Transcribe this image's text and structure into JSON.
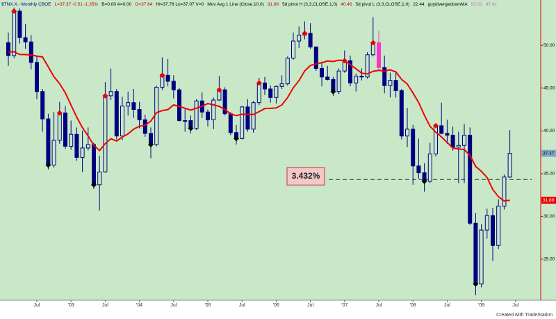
{
  "chart_data": {
    "type": "candlestick",
    "header": [
      {
        "text": "$TNX.X - Monthly  CBOE",
        "color": "#000080"
      },
      {
        "text": "L=37.37  -0.51  -1.35%",
        "color": "#cc0000"
      },
      {
        "text": "B=0.00  A=0.00",
        "color": "#000000"
      },
      {
        "text": "O=37.64",
        "color": "#cc0000"
      },
      {
        "text": "Hi=37.78  Lo=37.07  V=0",
        "color": "#000000"
      },
      {
        "text": "Mov Avg 1 Line (Close,10,0)",
        "color": "#000000"
      },
      {
        "text": "31.89",
        "color": "#cc0000"
      },
      {
        "text": "5d pivot H (3,3,CLOSE,1,0)",
        "color": "#000000"
      },
      {
        "text": "40.46",
        "color": "#cc0000"
      },
      {
        "text": "5d pivot L (3,3,CLOSE,1,0)",
        "color": "#000000"
      },
      {
        "text": "22.44",
        "color": "#000000"
      },
      {
        "text": "guydivergedownMA",
        "color": "#000000"
      },
      {
        "text": "52.01",
        "color": "#cc66cc"
      },
      {
        "text": "47.41",
        "color": "#cc66cc"
      }
    ],
    "footer": "Created with TradeStation",
    "categories": [
      null,
      null,
      null,
      null,
      null,
      "Jul",
      null,
      null,
      null,
      null,
      null,
      "'03",
      null,
      null,
      null,
      null,
      null,
      "Jul",
      null,
      null,
      null,
      null,
      null,
      "'04",
      null,
      null,
      null,
      null,
      null,
      "Jul",
      null,
      null,
      null,
      null,
      null,
      "'05",
      null,
      null,
      null,
      null,
      null,
      "Jul",
      null,
      null,
      null,
      null,
      null,
      "'06",
      null,
      null,
      null,
      null,
      null,
      "Jul",
      null,
      null,
      null,
      null,
      null,
      "'07",
      null,
      null,
      null,
      null,
      null,
      "Jul",
      null,
      null,
      null,
      null,
      null,
      "'08",
      null,
      null,
      null,
      null,
      null,
      "Jul",
      null,
      null,
      null,
      null,
      null,
      "'09",
      null,
      null,
      null,
      null,
      null,
      "Jul"
    ],
    "open": [
      50.3,
      48.8,
      54.0,
      50.9,
      50.4,
      48.0,
      44.6,
      41.4,
      36.0,
      38.9,
      42.1,
      38.2,
      39.6,
      36.9,
      38.0,
      38.4,
      33.7,
      35.2,
      44.1,
      44.6,
      39.4,
      42.9,
      43.3,
      42.5,
      41.3,
      39.7,
      38.4,
      45.1,
      46.5,
      45.8,
      44.8,
      41.2,
      41.2,
      40.3,
      43.5,
      42.2,
      41.3,
      43.6,
      44.8,
      42.0,
      39.8,
      39.1,
      42.8,
      40.2,
      43.3,
      45.6,
      44.9,
      43.9,
      45.2,
      45.5,
      48.5,
      50.5,
      51.2,
      51.4,
      49.8,
      47.3,
      46.3,
      46.0,
      44.6,
      47.0,
      48.2,
      45.6,
      46.4,
      46.3,
      48.9,
      50.3,
      47.4,
      45.3,
      45.9,
      44.7,
      39.4,
      40.2,
      35.9,
      35.1,
      34.1,
      37.3,
      40.6,
      39.7,
      39.5,
      38.1,
      38.3,
      39.5,
      29.2,
      22.1,
      28.4,
      30.1,
      26.6,
      31.2,
      34.6,
      null
    ],
    "high": [
      51.5,
      54.4,
      54.3,
      52.5,
      51.2,
      48.8,
      44.9,
      42.0,
      42.2,
      43.4,
      42.9,
      41.2,
      40.4,
      40.0,
      40.4,
      38.6,
      37.1,
      45.7,
      47.3,
      44.9,
      44.0,
      44.6,
      44.9,
      43.4,
      41.9,
      40.4,
      45.3,
      48.6,
      48.4,
      46.5,
      45.0,
      42.6,
      41.8,
      43.7,
      44.5,
      42.5,
      43.9,
      46.4,
      45.1,
      42.2,
      40.7,
      42.9,
      43.7,
      43.5,
      46.2,
      46.3,
      45.3,
      45.3,
      46.5,
      48.7,
      51.5,
      52.2,
      52.8,
      52.6,
      49.9,
      48.1,
      47.6,
      46.3,
      47.3,
      49.4,
      48.8,
      46.7,
      47.3,
      49.2,
      53.3,
      51.7,
      48.8,
      46.8,
      46.8,
      44.9,
      42.7,
      40.7,
      39.1,
      36.2,
      38.6,
      40.8,
      43.3,
      41.3,
      40.5,
      39.9,
      40.8,
      40.4,
      30.4,
      29.1,
      30.9,
      31.0,
      32.0,
      34.9,
      40.1,
      null
    ],
    "low": [
      47.6,
      48.5,
      50.2,
      49.6,
      47.2,
      43.7,
      39.9,
      35.5,
      35.7,
      38.5,
      37.9,
      37.8,
      36.5,
      35.2,
      37.7,
      33.2,
      30.7,
      35.1,
      43.6,
      39.0,
      38.9,
      41.8,
      41.5,
      40.3,
      39.3,
      36.8,
      38.2,
      44.8,
      45.2,
      43.8,
      41.1,
      39.9,
      39.7,
      40.1,
      41.5,
      40.5,
      40.2,
      43.5,
      41.8,
      39.5,
      38.4,
      39.0,
      39.9,
      39.8,
      43.0,
      44.2,
      43.3,
      43.2,
      44.9,
      45.3,
      48.3,
      49.7,
      50.7,
      49.6,
      47.0,
      45.2,
      45.9,
      44.1,
      44.3,
      46.8,
      45.2,
      44.6,
      45.9,
      46.1,
      48.7,
      47.0,
      44.4,
      43.9,
      43.9,
      39.0,
      38.1,
      33.7,
      34.4,
      32.9,
      33.9,
      37.0,
      39.6,
      38.5,
      37.7,
      33.9,
      33.9,
      29.0,
      20.8,
      21.7,
      27.4,
      24.8,
      26.2,
      30.8,
      34.5,
      null
    ],
    "close": [
      48.8,
      54.0,
      50.9,
      50.4,
      48.0,
      44.6,
      41.4,
      36.0,
      38.9,
      42.1,
      38.2,
      39.6,
      36.9,
      38.0,
      38.4,
      33.7,
      35.2,
      44.1,
      44.6,
      39.4,
      42.9,
      43.3,
      42.5,
      41.3,
      39.7,
      38.4,
      45.1,
      46.5,
      45.8,
      44.8,
      41.2,
      41.2,
      40.3,
      43.5,
      42.2,
      41.3,
      43.6,
      44.8,
      42.0,
      39.8,
      39.1,
      42.8,
      40.2,
      43.3,
      45.6,
      44.9,
      43.9,
      45.2,
      45.5,
      48.5,
      50.5,
      51.2,
      51.4,
      49.8,
      47.3,
      46.3,
      46.0,
      44.6,
      47.0,
      48.2,
      45.6,
      46.4,
      46.3,
      48.9,
      50.3,
      47.4,
      45.3,
      45.9,
      44.7,
      39.4,
      40.2,
      35.9,
      35.1,
      34.1,
      37.3,
      40.6,
      39.7,
      39.5,
      38.1,
      38.3,
      39.5,
      29.2,
      22.1,
      28.4,
      30.1,
      26.6,
      31.2,
      34.6,
      37.37,
      null
    ],
    "ma": [
      49.25,
      49.25,
      48.93,
      48.92,
      48.88,
      48.74,
      48.64,
      47.49,
      46.33,
      45.51,
      44.45,
      43.01,
      41.61,
      40.37,
      39.41,
      38.32,
      37.7,
      38.51,
      39.08,
      38.81,
      39.28,
      39.65,
      40.21,
      40.54,
      40.67,
      41.14,
      42.13,
      42.37,
      42.49,
      43.03,
      42.86,
      42.65,
      42.43,
      42.65,
      42.9,
      43.19,
      43.04,
      42.87,
      42.49,
      41.99,
      41.78,
      41.94,
      41.93,
      41.91,
      42.25,
      42.61,
      42.64,
      42.68,
      43.03,
      43.9,
      45.04,
      45.88,
      47.0,
      47.65,
      47.82,
      47.96,
      48.17,
      48.11,
      48.26,
      48.23,
      47.74,
      47.26,
      46.75,
      46.66,
      46.96,
      47.07,
      47.0,
      47.13,
      46.9,
      46.02,
      45.48,
      44.43,
      43.31,
      41.83,
      40.53,
      39.85,
      39.29,
      38.65,
      37.99,
      37.88,
      37.81,
      37.14,
      35.84,
      35.27,
      34.55,
      33.15,
      32.3,
      31.81,
      31.89,
      null
    ],
    "pivot_high": [
      null,
      54.0,
      null,
      null,
      null,
      null,
      null,
      null,
      null,
      42.1,
      null,
      null,
      null,
      null,
      null,
      null,
      null,
      44.1,
      null,
      null,
      null,
      null,
      null,
      null,
      null,
      null,
      null,
      46.5,
      null,
      null,
      null,
      null,
      null,
      null,
      null,
      null,
      null,
      44.8,
      null,
      null,
      null,
      null,
      null,
      null,
      45.6,
      null,
      null,
      null,
      null,
      null,
      null,
      null,
      51.4,
      null,
      null,
      null,
      null,
      null,
      null,
      48.2,
      null,
      null,
      null,
      null,
      50.3,
      null,
      null,
      null,
      null,
      null,
      null,
      null,
      null,
      null,
      null,
      40.6,
      null,
      null,
      null,
      null,
      null,
      null,
      null,
      null,
      null,
      null,
      null,
      null,
      null,
      null
    ],
    "pivot_low": [
      null,
      null,
      null,
      null,
      null,
      null,
      null,
      36.0,
      null,
      null,
      null,
      null,
      null,
      null,
      null,
      33.7,
      null,
      null,
      null,
      null,
      null,
      null,
      null,
      null,
      null,
      38.4,
      null,
      null,
      null,
      null,
      null,
      null,
      40.3,
      null,
      null,
      null,
      null,
      null,
      null,
      null,
      39.1,
      null,
      null,
      null,
      null,
      null,
      null,
      null,
      null,
      null,
      null,
      null,
      null,
      null,
      null,
      null,
      null,
      44.6,
      null,
      null,
      null,
      null,
      null,
      null,
      null,
      null,
      null,
      null,
      null,
      null,
      null,
      null,
      null,
      34.1,
      null,
      null,
      null,
      null,
      null,
      null,
      null,
      null,
      22.1,
      null,
      null,
      null,
      null,
      null,
      null,
      null
    ],
    "up_color": "#000080",
    "down_color": "#000080",
    "ma_color": "#ee0000",
    "pivot_high_color": "#ee0000",
    "pivot_low_color": "#000000",
    "highlight": {
      "index": 65,
      "color": "#ff33cc"
    },
    "annotation": {
      "label": "3.432%",
      "value": 34.32
    },
    "ylim": [
      20.2,
      55.3
    ],
    "yticks": [
      {
        "value": 25,
        "label": "25.00"
      },
      {
        "value": 30,
        "label": "30.00"
      },
      {
        "value": 35,
        "label": "35.00"
      },
      {
        "value": 40,
        "label": "40.00"
      },
      {
        "value": 45,
        "label": "45.00"
      },
      {
        "value": 50,
        "label": "50.00"
      }
    ],
    "background": "#c8e8c8"
  }
}
